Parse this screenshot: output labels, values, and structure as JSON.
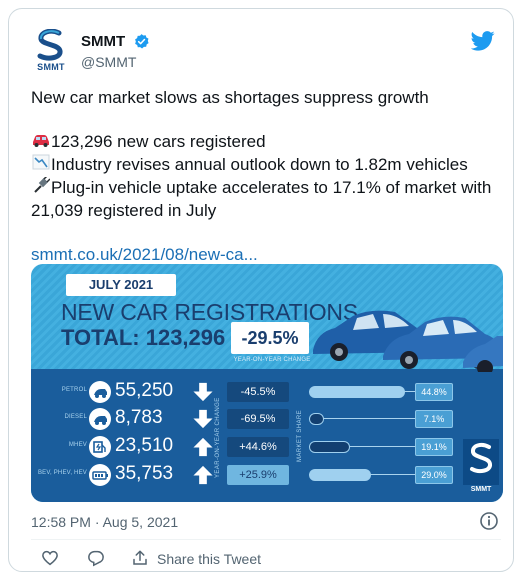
{
  "account": {
    "name": "SMMT",
    "handle": "@SMMT",
    "avatar_text": "SMMT",
    "verified_icon": "verified-badge-icon"
  },
  "tweet": {
    "headline": "New car market slows as shortages suppress growth",
    "line1": "123,296 new cars registered",
    "line1_icon": "car-emoji",
    "line2": "Industry revises annual outlook down to 1.82m vehicles",
    "line2_icon": "chart-down-emoji",
    "line3": "Plug-in vehicle uptake accelerates to 17.1% of market with 21,039 registered in July",
    "line3_icon": "plug-emoji",
    "link": "smmt.co.uk/2021/08/new-ca..."
  },
  "infographic": {
    "month": "JULY 2021",
    "title": "NEW CAR REGISTRATIONS",
    "total_label": "TOTAL: 123,296",
    "total_change": "-29.5%",
    "change_caption": "YEAR-ON-YEAR CHANGE",
    "yoy_axis_label": "YEAR-ON-YEAR CHANGE",
    "share_axis_label": "MARKET SHARE",
    "logo_text": "SMMT",
    "rows": [
      {
        "label": "PETROL",
        "value": "55,250",
        "direction": "down",
        "yoy": "-45.5%",
        "share": "44.8%",
        "share_fraction": 0.448
      },
      {
        "label": "DIESEL",
        "value": "8,783",
        "direction": "down",
        "yoy": "-69.5%",
        "share": "7.1%",
        "share_fraction": 0.071
      },
      {
        "label": "MHEV",
        "value": "23,510",
        "direction": "up",
        "yoy": "+44.6%",
        "share": "19.1%",
        "share_fraction": 0.191
      },
      {
        "label": "BEV, PHEV, HEV",
        "value": "35,753",
        "direction": "up",
        "yoy": "+25.9%",
        "share": "29.0%",
        "share_fraction": 0.29
      }
    ]
  },
  "footer": {
    "timestamp": "12:58 PM · Aug 5, 2021",
    "share_label": "Share this Tweet"
  },
  "colors": {
    "brand_blue": "#1a5d9c",
    "light_blue": "#44b0e0",
    "twitter_blue": "#1d9bf0",
    "link_blue": "#1b6fb5"
  }
}
